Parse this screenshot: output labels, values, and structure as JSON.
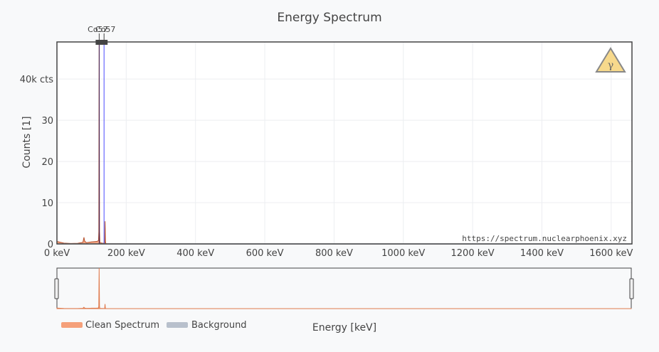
{
  "chart_data": {
    "type": "area",
    "title": "Energy Spectrum",
    "xlabel": "Energy [keV]",
    "ylabel": "Counts [1]",
    "xlim": [
      0,
      1660
    ],
    "ylim": [
      0,
      49000
    ],
    "xticks": [
      {
        "value": 0,
        "label": "0 keV"
      },
      {
        "value": 200,
        "label": "200 keV"
      },
      {
        "value": 400,
        "label": "400 keV"
      },
      {
        "value": 600,
        "label": "600 keV"
      },
      {
        "value": 800,
        "label": "800 keV"
      },
      {
        "value": 1000,
        "label": "1000 keV"
      },
      {
        "value": 1200,
        "label": "1200 keV"
      },
      {
        "value": 1400,
        "label": "1400 keV"
      },
      {
        "value": 1600,
        "label": "1600 keV"
      }
    ],
    "yticks": [
      {
        "value": 0,
        "label": "0"
      },
      {
        "value": 10000,
        "label": "10"
      },
      {
        "value": 20000,
        "label": "20"
      },
      {
        "value": 30000,
        "label": "30"
      },
      {
        "value": 40000,
        "label": "40k cts"
      }
    ],
    "grid": true,
    "legend": "bottom-left",
    "series": [
      {
        "name": "Clean Spectrum",
        "color": "#f08a5d",
        "x": [
          0,
          5,
          20,
          40,
          60,
          75,
          78,
          80,
          85,
          100,
          115,
          120,
          121,
          122,
          123,
          124,
          130,
          135,
          138,
          139,
          140,
          141,
          145,
          160,
          300,
          600,
          1000,
          1400,
          1660
        ],
        "y": [
          600,
          500,
          200,
          100,
          150,
          400,
          1600,
          700,
          300,
          500,
          600,
          800,
          3000,
          49000,
          3000,
          300,
          200,
          150,
          100,
          5500,
          600,
          100,
          50,
          30,
          10,
          5,
          5,
          5,
          5
        ]
      },
      {
        "name": "Background",
        "color": "#aab4c4",
        "x": [
          0,
          1660
        ],
        "y": [
          0,
          0
        ]
      }
    ],
    "markers": [
      {
        "label": "Co57",
        "x": 122,
        "color": "#3b1e5a"
      },
      {
        "label": "Co57",
        "x": 136,
        "color": "#4b4bff"
      }
    ],
    "watermark": "https://spectrum.nuclearphoenix.xyz"
  }
}
